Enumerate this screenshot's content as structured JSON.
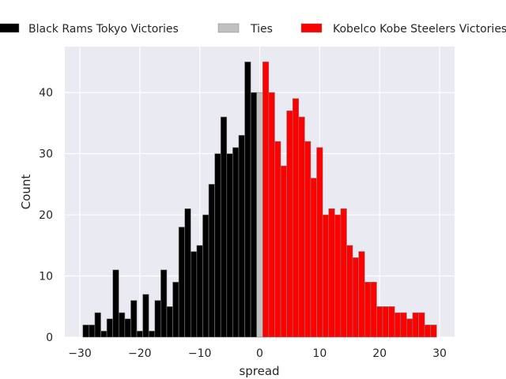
{
  "chart_data": {
    "type": "bar",
    "title": "",
    "xlabel": "spread",
    "ylabel": "Count",
    "xlim": [
      -32.5,
      32.5
    ],
    "ylim": [
      0,
      47.5
    ],
    "xticks": [
      -30,
      -20,
      -10,
      0,
      10,
      20,
      30
    ],
    "yticks": [
      0,
      10,
      20,
      30,
      40
    ],
    "grid": true,
    "legend_position": "top",
    "colors": {
      "background": "#eaeaf2",
      "grid": "#ffffff",
      "Black Rams Tokyo Victories": "#000000",
      "Ties": "#c0c0c0",
      "Kobelco Kobe Steelers Victories": "#ff0000",
      "bar_edge": "#808080"
    },
    "series": [
      {
        "name": "Black Rams Tokyo Victories",
        "x": [
          -29,
          -28,
          -27,
          -26,
          -25,
          -24,
          -23,
          -22,
          -21,
          -20,
          -19,
          -18,
          -17,
          -16,
          -15,
          -14,
          -13,
          -12,
          -11,
          -10,
          -9,
          -8,
          -7,
          -6,
          -5,
          -4,
          -3,
          -2,
          -1
        ],
        "values": [
          2,
          2,
          4,
          1,
          3,
          11,
          4,
          3,
          6,
          1,
          7,
          1,
          6,
          11,
          5,
          9,
          18,
          21,
          14,
          15,
          20,
          25,
          30,
          36,
          30,
          31,
          33,
          45,
          40
        ]
      },
      {
        "name": "Ties",
        "x": [
          0
        ],
        "values": [
          40
        ]
      },
      {
        "name": "Kobelco Kobe Steelers Victories",
        "x": [
          1,
          2,
          3,
          4,
          5,
          6,
          7,
          8,
          9,
          10,
          11,
          12,
          13,
          14,
          15,
          16,
          17,
          18,
          19,
          20,
          21,
          22,
          23,
          24,
          25,
          26,
          27,
          28,
          29
        ],
        "values": [
          45,
          40,
          32,
          28,
          37,
          39,
          36,
          32,
          26,
          31,
          20,
          21,
          20,
          21,
          15,
          13,
          14,
          9,
          9,
          5,
          5,
          5,
          4,
          4,
          3,
          4,
          4,
          2,
          2
        ]
      }
    ]
  }
}
